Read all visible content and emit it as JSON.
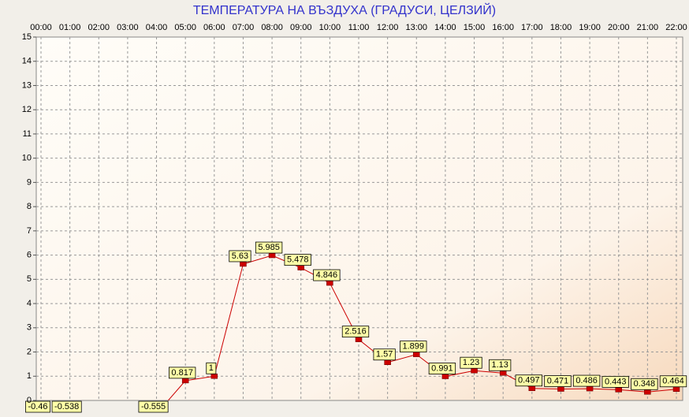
{
  "chart_data": {
    "type": "line",
    "title": "ТЕМПЕРАТУРА НА ВЪЗДУХА  (ГРАДУСИ, ЦЕЛЗИЙ)",
    "categories": [
      "00:00",
      "01:00",
      "02:00",
      "03:00",
      "04:00",
      "05:00",
      "06:00",
      "07:00",
      "08:00",
      "09:00",
      "10:00",
      "11:00",
      "12:00",
      "13:00",
      "14:00",
      "15:00",
      "16:00",
      "17:00",
      "18:00",
      "19:00",
      "20:00",
      "21:00",
      "22:00"
    ],
    "values": [
      -0.46,
      -0.538,
      null,
      null,
      -0.555,
      0.817,
      1,
      5.63,
      5.985,
      5.478,
      4.846,
      2.516,
      1.57,
      1.899,
      0.991,
      1.23,
      1.13,
      0.497,
      0.471,
      0.486,
      0.443,
      0.348,
      0.464
    ],
    "color": "#cc0000",
    "ylim": [
      0,
      15
    ],
    "yticks": [
      0,
      1,
      2,
      3,
      4,
      5,
      6,
      7,
      8,
      9,
      10,
      11,
      12,
      13,
      14,
      15
    ],
    "grid": true
  }
}
